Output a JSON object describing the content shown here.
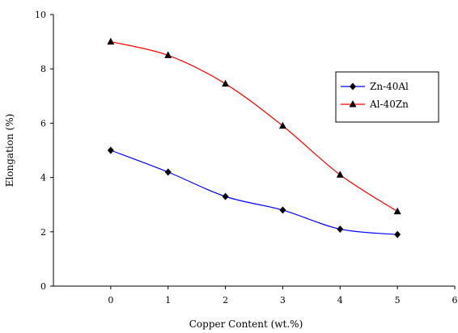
{
  "chart_data": {
    "type": "line",
    "title": "",
    "xlabel": "Copper Content (wt.%)",
    "ylabel": "Elongation (%)",
    "x": [
      0,
      1,
      2,
      3,
      4,
      5
    ],
    "xlim": [
      -1,
      6
    ],
    "ylim": [
      0,
      10
    ],
    "xticks": [
      "0",
      "1",
      "2",
      "3",
      "4",
      "5",
      "6"
    ],
    "yticks": [
      "0",
      "2",
      "4",
      "6",
      "8",
      "10"
    ],
    "grid": false,
    "legend_position": "right",
    "series": [
      {
        "name": "Zn-40Al",
        "color": "#0000ff",
        "marker": "diamond",
        "values": [
          5.0,
          4.2,
          3.3,
          2.8,
          2.1,
          1.9
        ]
      },
      {
        "name": "Al-40Zn",
        "color": "#ff0000",
        "marker": "triangle",
        "values": [
          9.0,
          8.5,
          7.45,
          5.9,
          4.1,
          2.75
        ]
      }
    ]
  }
}
